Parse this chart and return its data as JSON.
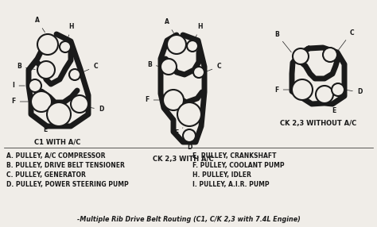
{
  "title": "-Multiple Rib Drive Belt Routing (C1, C/K 2,3 with 7.4L Engine)",
  "diagram1_label": "C1 WITH A/C",
  "diagram2_label": "CK 2,3 WITH A/C",
  "diagram3_label": "CK 2,3 WITHOUT A/C",
  "legend_left": [
    "A. PULLEY, A/C COMPRESSOR",
    "B. PULLEY, DRIVE BELT TENSIONER",
    "C. PULLEY, GENERATOR",
    "D. PULLEY, POWER STEERING PUMP"
  ],
  "legend_right": [
    "E. PULLEY, CRANKSHAFT",
    "F. PULLEY, COOLANT PUMP",
    "H. PULLEY, IDLER",
    "I. PULLEY, A.I.R. PUMP"
  ],
  "bg_color": "#f0ede8",
  "text_color": "#1a1a1a",
  "line_color": "#1a1a1a",
  "belt_lw": 5.0,
  "pulley_lw": 1.5,
  "font_size_label": 5.5,
  "font_size_legend": 5.5,
  "font_size_title": 5.8,
  "font_size_diagram_label": 6.0
}
